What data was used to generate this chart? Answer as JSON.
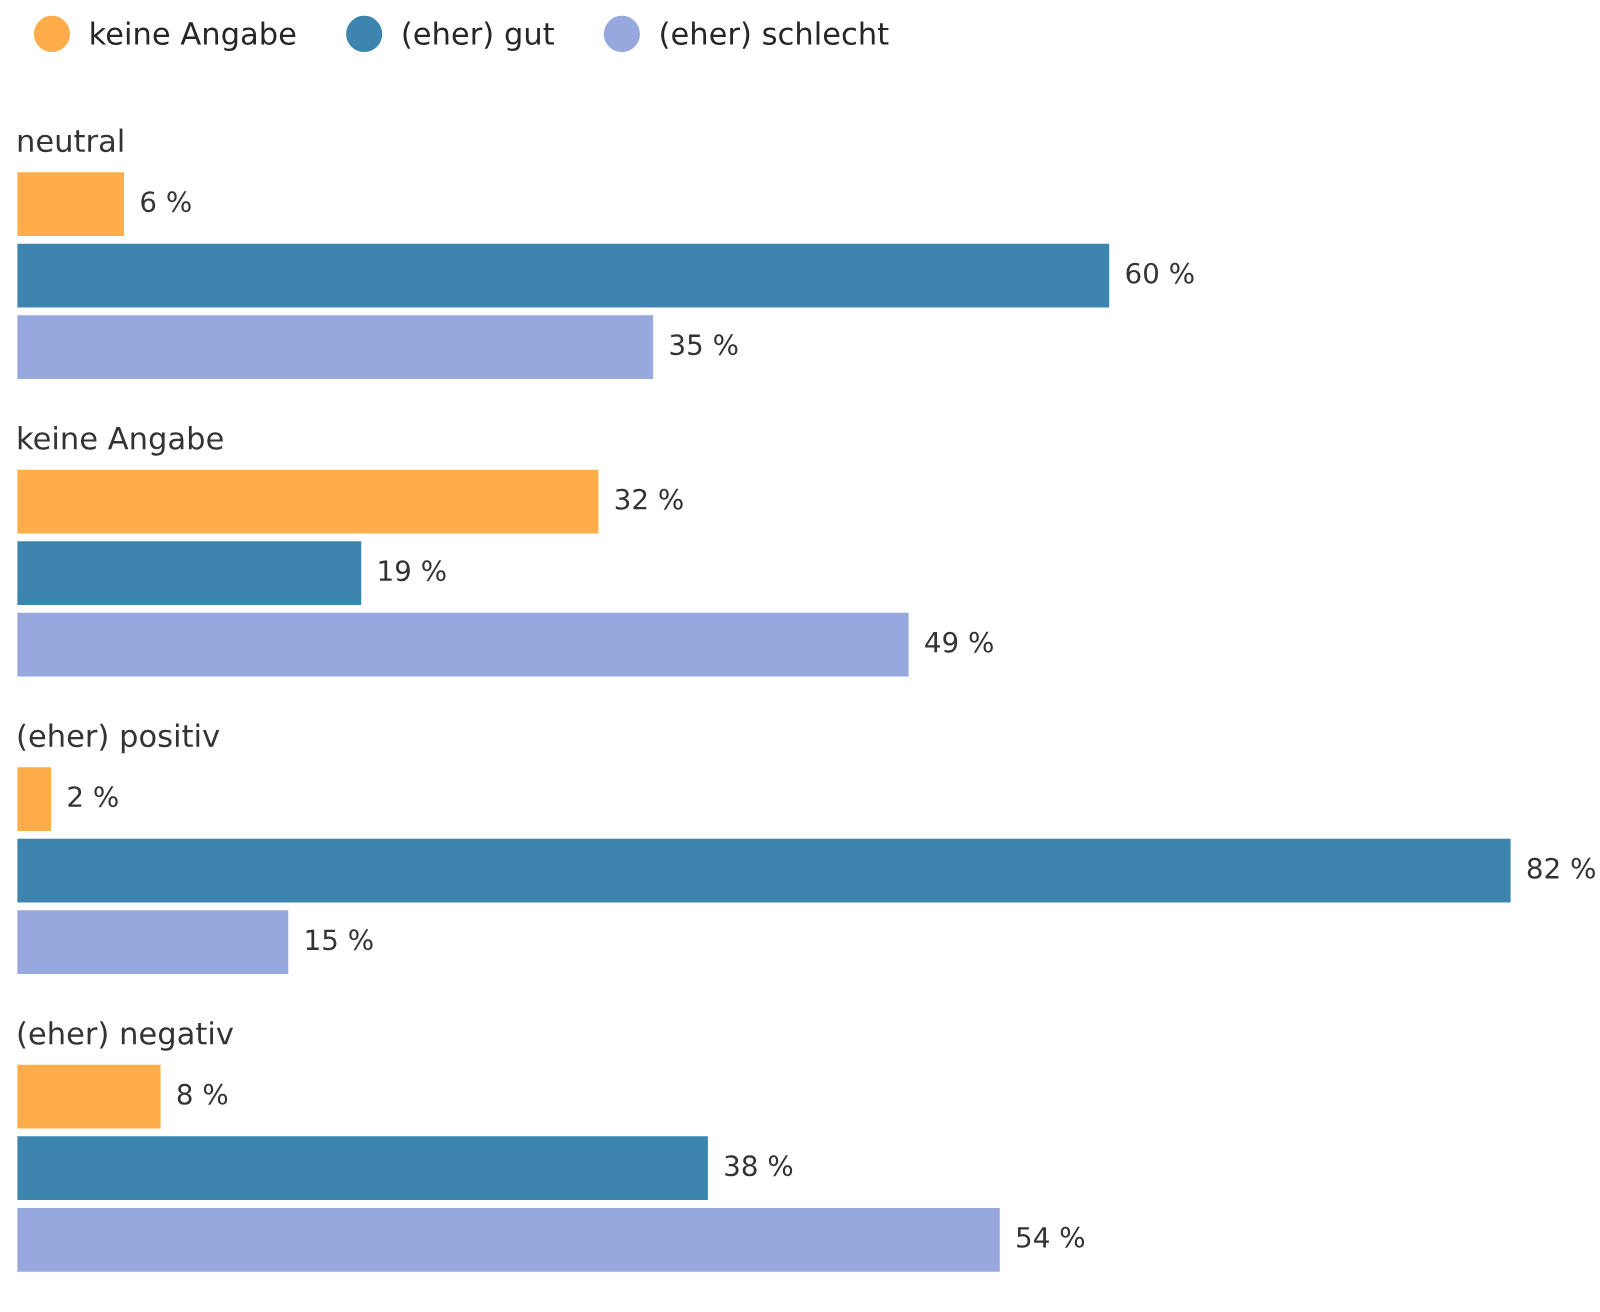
{
  "chart_data": {
    "type": "bar",
    "orientation": "horizontal",
    "categories": [
      "neutral",
      "keine Angabe",
      "(eher) positiv",
      "(eher) negativ"
    ],
    "series": [
      {
        "name": "keine Angabe",
        "color": "#ffad4a",
        "values": [
          6,
          32,
          2,
          8
        ],
        "value_labels": [
          "6 %",
          "32 %",
          "2 %",
          "8 %"
        ]
      },
      {
        "name": "(eher) gut",
        "color": "#3d85ae",
        "values": [
          60,
          19,
          82,
          38
        ],
        "value_labels": [
          "60 %",
          "19 %",
          "82 %",
          "38 %"
        ]
      },
      {
        "name": "(eher) schlecht",
        "color": "#97a8de",
        "values": [
          35,
          49,
          15,
          54
        ],
        "value_labels": [
          "35 %",
          "49 %",
          "15 %",
          "54 %"
        ]
      }
    ],
    "legend": "top left"
  }
}
